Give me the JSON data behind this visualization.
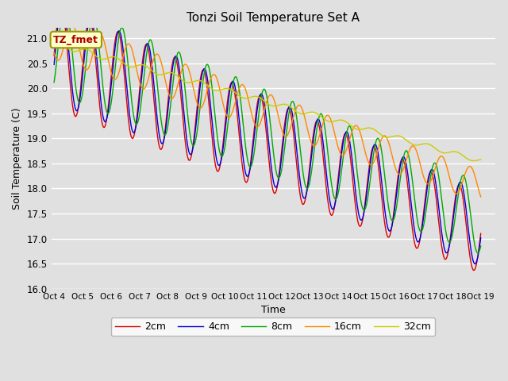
{
  "title": "Tonzi Soil Temperature Set A",
  "xlabel": "Time",
  "ylabel": "Soil Temperature (C)",
  "ylim": [
    16.0,
    21.2
  ],
  "series_labels": [
    "2cm",
    "4cm",
    "8cm",
    "16cm",
    "32cm"
  ],
  "series_colors": [
    "#dd0000",
    "#0000dd",
    "#00aa00",
    "#ff8800",
    "#cccc00"
  ],
  "legend_label": "TZ_fmet",
  "legend_bg": "#ffffcc",
  "legend_border": "#aaaa00",
  "bg_color": "#e0e0e0",
  "tick_dates": [
    "Oct 4",
    "Oct 5",
    "Oct 6",
    "Oct 7",
    "Oct 8",
    "Oct 9",
    "Oct 10",
    "Oct 11",
    "Oct 12",
    "Oct 13",
    "Oct 14",
    "Oct 15",
    "Oct 16",
    "Oct 17",
    "Oct 18",
    "Oct 19"
  ],
  "n_points": 720,
  "start_temps": [
    20.65,
    20.72,
    20.85,
    21.0,
    20.9
  ],
  "end_temps": [
    17.1,
    17.2,
    17.4,
    18.05,
    18.55
  ],
  "amplitudes": [
    1.05,
    1.0,
    0.95,
    0.42,
    0.06
  ],
  "phase_shifts_days": [
    0.0,
    0.04,
    0.14,
    0.38,
    0.9
  ]
}
